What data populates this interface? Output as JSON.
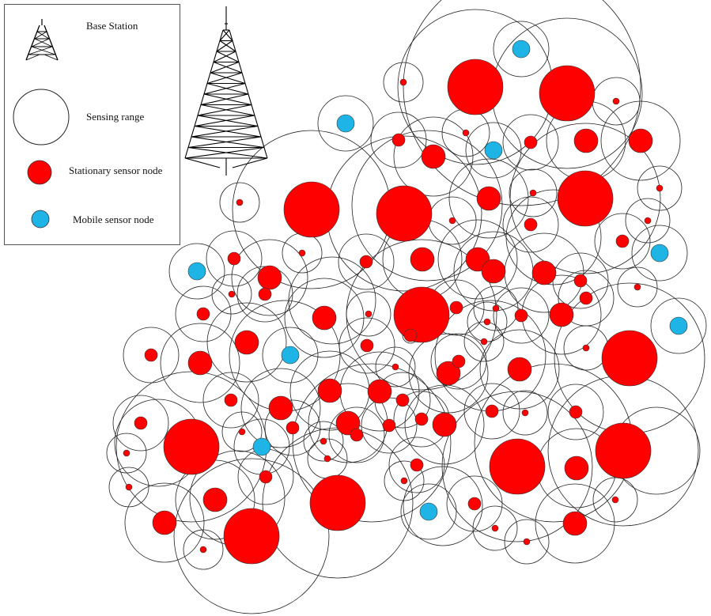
{
  "legend": {
    "items": [
      {
        "label": "Base Station",
        "symbol": "tower-icon"
      },
      {
        "label": "Sensing range",
        "symbol": "hollow-circle"
      },
      {
        "label": "Stationary sensor node",
        "symbol": "red-circle"
      },
      {
        "label": "Mobile sensor node",
        "symbol": "blue-circle"
      }
    ]
  },
  "colors": {
    "stationary": "#ff0000",
    "mobile": "#1fb4e6",
    "range_stroke": "#222222",
    "node_stroke": "#333333"
  },
  "stationary_node_count": 84,
  "mobile_node_count": 11
}
